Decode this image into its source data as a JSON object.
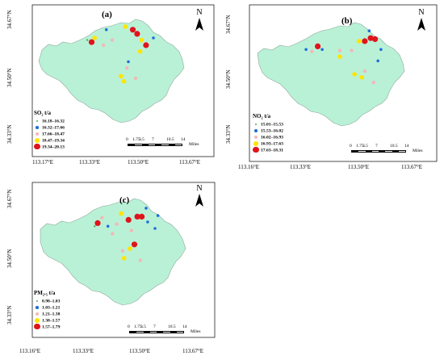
{
  "colors": {
    "region": "#b9f1d7",
    "cls1": "#4caf50",
    "cls2": "#1e6fd9",
    "cls3": "#f3b8b8",
    "cls4": "#ffe400",
    "cls5": "#e0141b"
  },
  "scale": {
    "ticks": [
      "0",
      "1.75",
      "3.5",
      "7",
      "10.5",
      "14"
    ],
    "unit": "Miles"
  },
  "x_ticks": [
    "113.17°E",
    "113.33°E",
    "113.50°E",
    "113.67°E"
  ],
  "x_ticks_b": [
    "113.16°E",
    "113.33°E",
    "113.50°E",
    "113.67°E"
  ],
  "y_ticks": [
    "34.67°N",
    "34.50°N",
    "34.33°N"
  ],
  "north_label": "N",
  "panels": [
    {
      "letter": "(a)",
      "legend_title": "SO₂ t/a",
      "legend": [
        "16.18–16.32",
        "16.32–17.66",
        "17.66–18.47",
        "18.47–19.34",
        "19.34–20.13"
      ],
      "points": [
        {
          "x": 0.36,
          "y": 0.52,
          "c": 4
        },
        {
          "x": 0.38,
          "y": 0.48,
          "c": 3
        },
        {
          "x": 0.33,
          "y": 0.5,
          "c": 0
        },
        {
          "x": 0.44,
          "y": 0.55,
          "c": 2
        },
        {
          "x": 0.5,
          "y": 0.5,
          "c": 2
        },
        {
          "x": 0.46,
          "y": 0.4,
          "c": 1
        },
        {
          "x": 0.59,
          "y": 0.37,
          "c": 3
        },
        {
          "x": 0.64,
          "y": 0.4,
          "c": 4
        },
        {
          "x": 0.67,
          "y": 0.44,
          "c": 4
        },
        {
          "x": 0.7,
          "y": 0.5,
          "c": 3
        },
        {
          "x": 0.73,
          "y": 0.55,
          "c": 4
        },
        {
          "x": 0.78,
          "y": 0.48,
          "c": 1
        },
        {
          "x": 0.61,
          "y": 0.71,
          "c": 1
        },
        {
          "x": 0.6,
          "y": 0.77,
          "c": 2
        },
        {
          "x": 0.56,
          "y": 0.85,
          "c": 3
        },
        {
          "x": 0.58,
          "y": 0.9,
          "c": 3
        },
        {
          "x": 0.66,
          "y": 0.87,
          "c": 2
        },
        {
          "x": 0.69,
          "y": 0.61,
          "c": 3
        }
      ]
    },
    {
      "letter": "(b)",
      "legend_title": "NO₂ t/a",
      "legend": [
        "15.01–15.53",
        "15.53–16.02",
        "16.02–16.93",
        "16.93–17.63",
        "17.63–18.31"
      ],
      "points": [
        {
          "x": 0.41,
          "y": 0.53,
          "c": 4
        },
        {
          "x": 0.37,
          "y": 0.58,
          "c": 2
        },
        {
          "x": 0.33,
          "y": 0.56,
          "c": 1
        },
        {
          "x": 0.44,
          "y": 0.56,
          "c": 1
        },
        {
          "x": 0.56,
          "y": 0.57,
          "c": 2
        },
        {
          "x": 0.56,
          "y": 0.63,
          "c": 3
        },
        {
          "x": 0.64,
          "y": 0.57,
          "c": 2
        },
        {
          "x": 0.69,
          "y": 0.48,
          "c": 3
        },
        {
          "x": 0.73,
          "y": 0.48,
          "c": 4
        },
        {
          "x": 0.77,
          "y": 0.45,
          "c": 4
        },
        {
          "x": 0.8,
          "y": 0.46,
          "c": 4
        },
        {
          "x": 0.84,
          "y": 0.56,
          "c": 1
        },
        {
          "x": 0.82,
          "y": 0.67,
          "c": 1
        },
        {
          "x": 0.73,
          "y": 0.77,
          "c": 2
        },
        {
          "x": 0.66,
          "y": 0.8,
          "c": 3
        },
        {
          "x": 0.71,
          "y": 0.83,
          "c": 3
        },
        {
          "x": 0.79,
          "y": 0.88,
          "c": 2
        },
        {
          "x": 0.76,
          "y": 0.38,
          "c": 1
        }
      ]
    },
    {
      "letter": "(c)",
      "legend_title": "PM₂.₅ t/a",
      "legend": [
        "0.98–1.03",
        "1.03–1.21",
        "1.21–1.38",
        "1.38–1.57",
        "1.57–1.79"
      ],
      "points": [
        {
          "x": 0.39,
          "y": 0.53,
          "c": 4
        },
        {
          "x": 0.42,
          "y": 0.48,
          "c": 2
        },
        {
          "x": 0.37,
          "y": 0.56,
          "c": 0
        },
        {
          "x": 0.46,
          "y": 0.56,
          "c": 1
        },
        {
          "x": 0.52,
          "y": 0.54,
          "c": 2
        },
        {
          "x": 0.49,
          "y": 0.63,
          "c": 2
        },
        {
          "x": 0.55,
          "y": 0.44,
          "c": 3
        },
        {
          "x": 0.6,
          "y": 0.5,
          "c": 4
        },
        {
          "x": 0.62,
          "y": 0.6,
          "c": 2
        },
        {
          "x": 0.66,
          "y": 0.47,
          "c": 4
        },
        {
          "x": 0.69,
          "y": 0.47,
          "c": 4
        },
        {
          "x": 0.73,
          "y": 0.52,
          "c": 1
        },
        {
          "x": 0.64,
          "y": 0.73,
          "c": 4
        },
        {
          "x": 0.61,
          "y": 0.77,
          "c": 3
        },
        {
          "x": 0.56,
          "y": 0.79,
          "c": 2
        },
        {
          "x": 0.57,
          "y": 0.86,
          "c": 3
        },
        {
          "x": 0.68,
          "y": 0.88,
          "c": 2
        },
        {
          "x": 0.72,
          "y": 0.39,
          "c": 1
        },
        {
          "x": 0.78,
          "y": 0.58,
          "c": 1
        },
        {
          "x": 0.8,
          "y": 0.46,
          "c": 1
        }
      ]
    }
  ]
}
